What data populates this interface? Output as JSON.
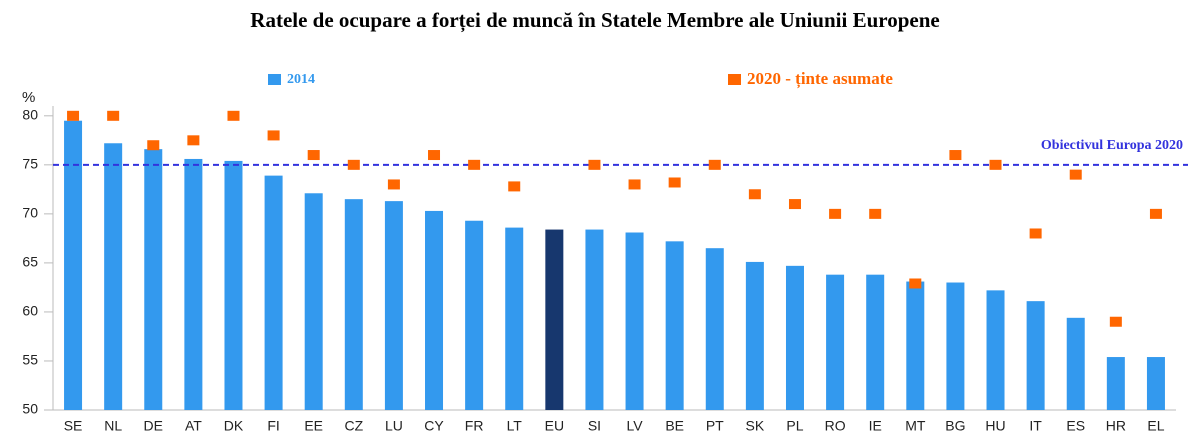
{
  "chart_data": {
    "type": "bar",
    "title": "Ratele de ocupare a forței de muncă în Statele Membre ale Uniunii Europene",
    "y_label": "%",
    "categories": [
      "SE",
      "NL",
      "DE",
      "AT",
      "DK",
      "FI",
      "EE",
      "CZ",
      "LU",
      "CY",
      "FR",
      "LT",
      "EU",
      "SI",
      "LV",
      "BE",
      "PT",
      "SK",
      "PL",
      "RO",
      "IE",
      "MT",
      "BG",
      "HU",
      "IT",
      "ES",
      "HR",
      "EL"
    ],
    "series": [
      {
        "name": "2014",
        "color": "#3399ee",
        "type": "bar",
        "colors": [
          "#3399ee",
          "#3399ee",
          "#3399ee",
          "#3399ee",
          "#3399ee",
          "#3399ee",
          "#3399ee",
          "#3399ee",
          "#3399ee",
          "#3399ee",
          "#3399ee",
          "#3399ee",
          "#17376e",
          "#3399ee",
          "#3399ee",
          "#3399ee",
          "#3399ee",
          "#3399ee",
          "#3399ee",
          "#3399ee",
          "#3399ee",
          "#3399ee",
          "#3399ee",
          "#3399ee",
          "#3399ee",
          "#3399ee",
          "#3399ee",
          "#3399ee"
        ],
        "values": [
          79.5,
          77.2,
          76.6,
          75.6,
          75.4,
          73.9,
          72.1,
          71.5,
          71.3,
          70.3,
          69.3,
          68.6,
          68.4,
          68.4,
          68.1,
          67.2,
          66.5,
          65.1,
          64.7,
          63.8,
          63.8,
          63.1,
          63,
          62.2,
          61.1,
          59.4,
          55.4,
          55.4
        ]
      },
      {
        "name": "2020 - ținte asumate",
        "color": "#ff6600",
        "type": "marker",
        "values": [
          80,
          80,
          77,
          77.5,
          80,
          78,
          76,
          75,
          73,
          76,
          75,
          72.8,
          null,
          75,
          73,
          73.2,
          75,
          72,
          71,
          70,
          70,
          62.9,
          76,
          75,
          68,
          74,
          59,
          70
        ]
      }
    ],
    "reference_line": {
      "value": 75,
      "label": "Obiectivul Europa 2020",
      "color": "#3333dd"
    },
    "ylim": [
      50,
      81
    ],
    "yticks": [
      50,
      55,
      60,
      65,
      70,
      75,
      80
    ]
  }
}
